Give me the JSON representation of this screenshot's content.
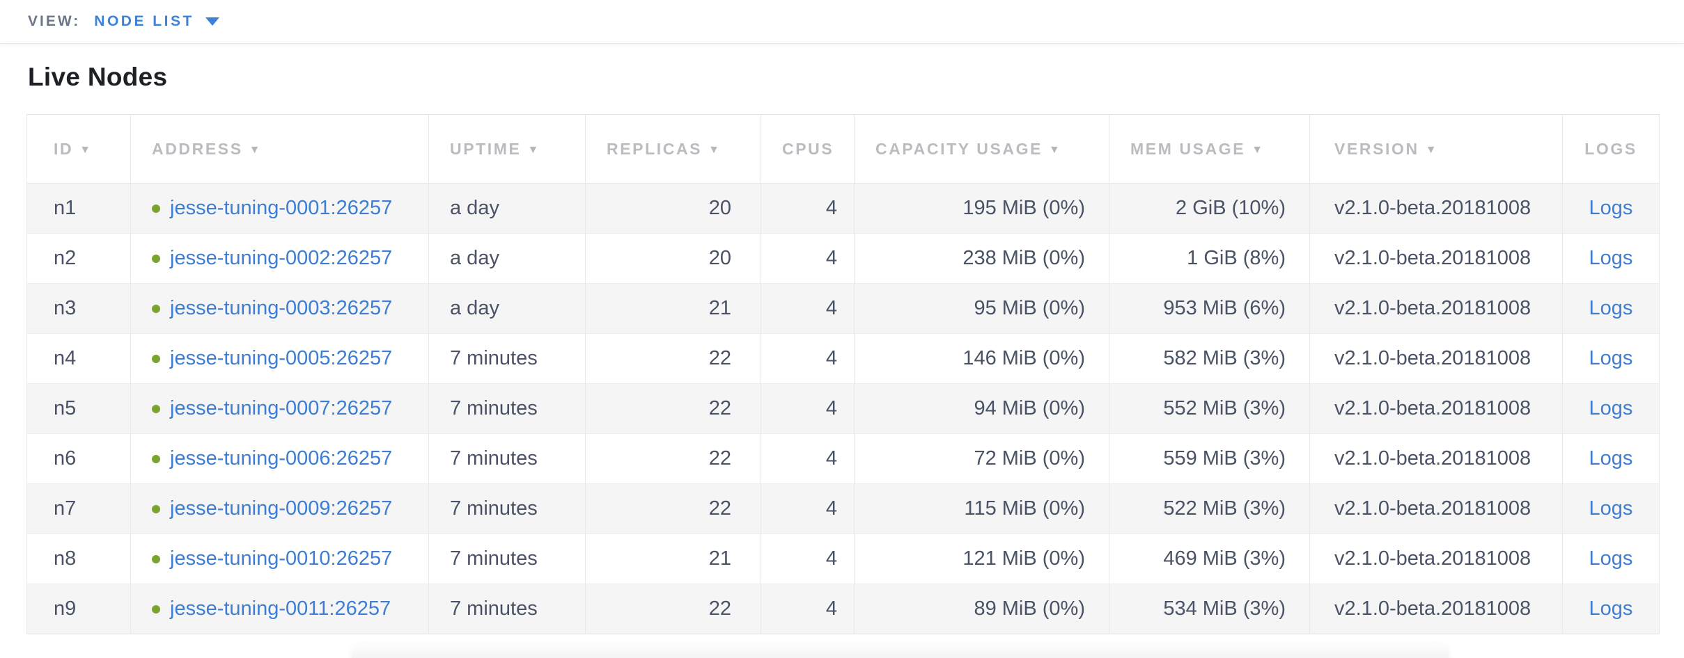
{
  "view_bar": {
    "label": "VIEW:",
    "selected": "NODE LIST"
  },
  "page": {
    "title": "Live Nodes"
  },
  "colors": {
    "link_blue": "#3e7dd4",
    "accent_blue": "#3b82d9",
    "status_green": "#7aa32f",
    "header_gray": "#babcbf",
    "body_text": "#4a5365",
    "zebra_row": "#f5f5f6"
  },
  "table": {
    "sort_icon": "▼",
    "logs_label": "Logs",
    "columns": [
      {
        "key": "id",
        "label": "ID",
        "sortable": true
      },
      {
        "key": "address",
        "label": "ADDRESS",
        "sortable": true
      },
      {
        "key": "uptime",
        "label": "UPTIME",
        "sortable": true
      },
      {
        "key": "replicas",
        "label": "REPLICAS",
        "sortable": true
      },
      {
        "key": "cpus",
        "label": "CPUS",
        "sortable": false
      },
      {
        "key": "capacity",
        "label": "CAPACITY USAGE",
        "sortable": true
      },
      {
        "key": "mem",
        "label": "MEM USAGE",
        "sortable": true
      },
      {
        "key": "version",
        "label": "VERSION",
        "sortable": true
      },
      {
        "key": "logs",
        "label": "LOGS",
        "sortable": false
      }
    ],
    "rows": [
      {
        "id": "n1",
        "address": "jesse-tuning-0001:26257",
        "uptime": "a day",
        "replicas": "20",
        "cpus": "4",
        "capacity": "195 MiB (0%)",
        "mem": "2 GiB (10%)",
        "version": "v2.1.0-beta.20181008"
      },
      {
        "id": "n2",
        "address": "jesse-tuning-0002:26257",
        "uptime": "a day",
        "replicas": "20",
        "cpus": "4",
        "capacity": "238 MiB (0%)",
        "mem": "1 GiB (8%)",
        "version": "v2.1.0-beta.20181008"
      },
      {
        "id": "n3",
        "address": "jesse-tuning-0003:26257",
        "uptime": "a day",
        "replicas": "21",
        "cpus": "4",
        "capacity": "95 MiB (0%)",
        "mem": "953 MiB (6%)",
        "version": "v2.1.0-beta.20181008"
      },
      {
        "id": "n4",
        "address": "jesse-tuning-0005:26257",
        "uptime": "7 minutes",
        "replicas": "22",
        "cpus": "4",
        "capacity": "146 MiB (0%)",
        "mem": "582 MiB (3%)",
        "version": "v2.1.0-beta.20181008"
      },
      {
        "id": "n5",
        "address": "jesse-tuning-0007:26257",
        "uptime": "7 minutes",
        "replicas": "22",
        "cpus": "4",
        "capacity": "94 MiB (0%)",
        "mem": "552 MiB (3%)",
        "version": "v2.1.0-beta.20181008"
      },
      {
        "id": "n6",
        "address": "jesse-tuning-0006:26257",
        "uptime": "7 minutes",
        "replicas": "22",
        "cpus": "4",
        "capacity": "72 MiB (0%)",
        "mem": "559 MiB (3%)",
        "version": "v2.1.0-beta.20181008"
      },
      {
        "id": "n7",
        "address": "jesse-tuning-0009:26257",
        "uptime": "7 minutes",
        "replicas": "22",
        "cpus": "4",
        "capacity": "115 MiB (0%)",
        "mem": "522 MiB (3%)",
        "version": "v2.1.0-beta.20181008"
      },
      {
        "id": "n8",
        "address": "jesse-tuning-0010:26257",
        "uptime": "7 minutes",
        "replicas": "21",
        "cpus": "4",
        "capacity": "121 MiB (0%)",
        "mem": "469 MiB (3%)",
        "version": "v2.1.0-beta.20181008"
      },
      {
        "id": "n9",
        "address": "jesse-tuning-0011:26257",
        "uptime": "7 minutes",
        "replicas": "22",
        "cpus": "4",
        "capacity": "89 MiB (0%)",
        "mem": "534 MiB (3%)",
        "version": "v2.1.0-beta.20181008"
      }
    ]
  }
}
